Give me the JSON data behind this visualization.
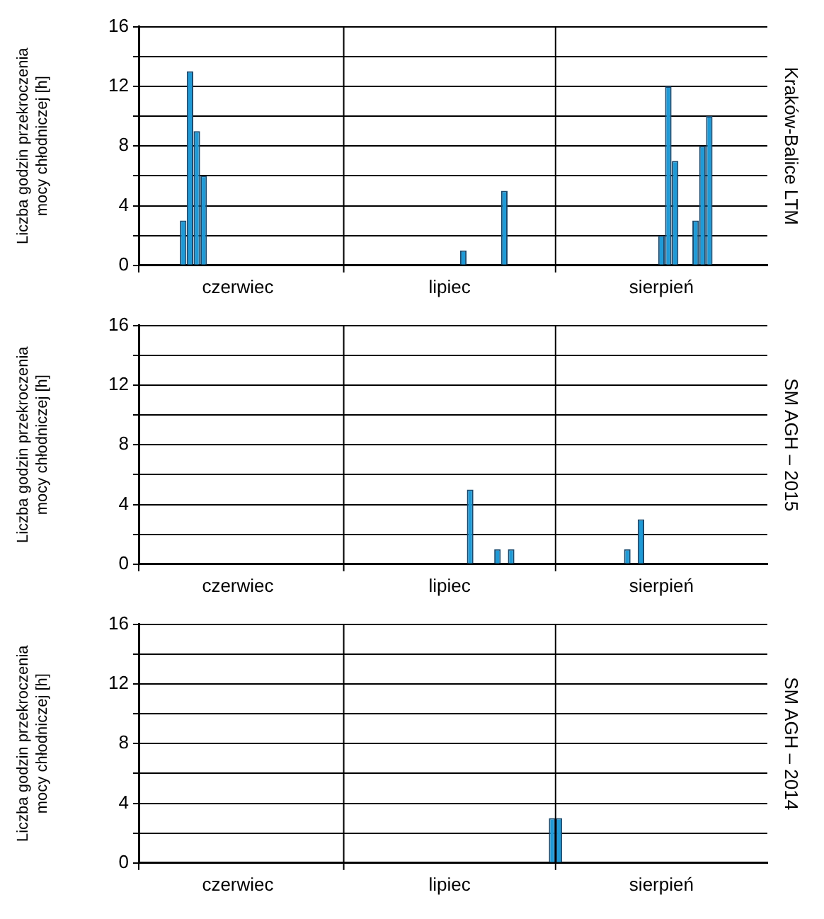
{
  "chart_data": [
    {
      "type": "bar",
      "y2label": "Kraków-Balice LTM",
      "ylabel": "Liczba godzin przekroczenia\nmocy chłodniczej [h]",
      "categories": [
        null,
        null,
        null,
        null,
        null,
        null,
        null,
        null,
        null,
        null,
        null,
        null,
        null,
        null,
        "czerwiec",
        null,
        null,
        null,
        null,
        null,
        null,
        null,
        null,
        null,
        null,
        null,
        null,
        null,
        null,
        null,
        null,
        null,
        null,
        null,
        null,
        null,
        null,
        null,
        null,
        null,
        null,
        null,
        null,
        null,
        null,
        "lipiec",
        null,
        null,
        null,
        null,
        null,
        null,
        null,
        null,
        null,
        null,
        null,
        null,
        null,
        null,
        null,
        null,
        null,
        null,
        null,
        null,
        null,
        null,
        null,
        null,
        null,
        null,
        null,
        null,
        null,
        null,
        "sierpień",
        null,
        null,
        null,
        null,
        null,
        null,
        null,
        null,
        null,
        null,
        null,
        null,
        null,
        null,
        null
      ],
      "values": [
        0,
        0,
        0,
        0,
        0,
        0,
        3,
        13,
        9,
        6,
        0,
        0,
        0,
        0,
        0,
        0,
        0,
        0,
        0,
        0,
        0,
        0,
        0,
        0,
        0,
        0,
        0,
        0,
        0,
        0,
        0,
        0,
        0,
        0,
        0,
        0,
        0,
        0,
        0,
        0,
        0,
        0,
        0,
        0,
        0,
        0,
        0,
        1,
        0,
        0,
        0,
        0,
        0,
        5,
        0,
        0,
        0,
        0,
        0,
        0,
        0,
        0,
        0,
        0,
        0,
        0,
        0,
        0,
        0,
        0,
        0,
        0,
        0,
        0,
        0,
        0,
        2,
        12,
        7,
        0,
        0,
        3,
        8,
        10,
        0,
        0,
        0,
        0,
        0,
        0,
        0,
        0
      ],
      "color": "#1f9ad6",
      "ylim": [
        0,
        16
      ],
      "yticks": [
        0,
        {
          "value": 2,
          "label": null
        },
        4,
        {
          "value": 6,
          "label": null
        },
        8,
        {
          "value": 10,
          "label": null
        },
        12,
        {
          "value": 14,
          "label": null
        },
        16
      ],
      "grid": "y",
      "legend": false
    },
    {
      "type": "bar",
      "y2label": "SM AGH – 2015",
      "ylabel": "Liczba godzin przekroczenia\nmocy chłodniczej [h]",
      "categories": [
        null,
        null,
        null,
        null,
        null,
        null,
        null,
        null,
        null,
        null,
        null,
        null,
        null,
        null,
        "czerwiec",
        null,
        null,
        null,
        null,
        null,
        null,
        null,
        null,
        null,
        null,
        null,
        null,
        null,
        null,
        null,
        null,
        null,
        null,
        null,
        null,
        null,
        null,
        null,
        null,
        null,
        null,
        null,
        null,
        null,
        null,
        "lipiec",
        null,
        null,
        null,
        null,
        null,
        null,
        null,
        null,
        null,
        null,
        null,
        null,
        null,
        null,
        null,
        null,
        null,
        null,
        null,
        null,
        null,
        null,
        null,
        null,
        null,
        null,
        null,
        null,
        null,
        null,
        "sierpień",
        null,
        null,
        null,
        null,
        null,
        null,
        null,
        null,
        null,
        null,
        null,
        null,
        null,
        null,
        null
      ],
      "values": [
        0,
        0,
        0,
        0,
        0,
        0,
        0,
        0,
        0,
        0,
        0,
        0,
        0,
        0,
        0,
        0,
        0,
        0,
        0,
        0,
        0,
        0,
        0,
        0,
        0,
        0,
        0,
        0,
        0,
        0,
        0,
        0,
        0,
        0,
        0,
        0,
        0,
        0,
        0,
        0,
        0,
        0,
        0,
        0,
        0,
        0,
        0,
        0,
        5,
        0,
        0,
        0,
        1,
        0,
        1,
        0,
        0,
        0,
        0,
        0,
        0,
        0,
        0,
        0,
        0,
        0,
        0,
        0,
        0,
        0,
        0,
        1,
        0,
        3,
        0,
        0,
        0,
        0,
        0,
        0,
        0,
        0,
        0,
        0,
        0,
        0,
        0,
        0,
        0,
        0,
        0,
        0
      ],
      "color": "#1f9ad6",
      "ylim": [
        0,
        16
      ],
      "yticks": [
        0,
        {
          "value": 2,
          "label": null
        },
        4,
        {
          "value": 6,
          "label": null
        },
        8,
        {
          "value": 10,
          "label": null
        },
        12,
        {
          "value": 14,
          "label": null
        },
        16
      ],
      "grid": "y",
      "legend": false
    },
    {
      "type": "bar",
      "y2label": "SM AGH – 2014",
      "ylabel": "Liczba godzin przekroczenia\nmocy chłodniczej [h]",
      "categories": [
        null,
        null,
        null,
        null,
        null,
        null,
        null,
        null,
        null,
        null,
        null,
        null,
        null,
        null,
        "czerwiec",
        null,
        null,
        null,
        null,
        null,
        null,
        null,
        null,
        null,
        null,
        null,
        null,
        null,
        null,
        null,
        null,
        null,
        null,
        null,
        null,
        null,
        null,
        null,
        null,
        null,
        null,
        null,
        null,
        null,
        null,
        "lipiec",
        null,
        null,
        null,
        null,
        null,
        null,
        null,
        null,
        null,
        null,
        null,
        null,
        null,
        null,
        null,
        null,
        null,
        null,
        null,
        null,
        null,
        null,
        null,
        null,
        null,
        null,
        null,
        null,
        null,
        null,
        "sierpień",
        null,
        null,
        null,
        null,
        null,
        null,
        null,
        null,
        null,
        null,
        null,
        null,
        null,
        null,
        null
      ],
      "values": [
        0,
        0,
        0,
        0,
        0,
        0,
        0,
        0,
        0,
        0,
        0,
        0,
        0,
        0,
        0,
        0,
        0,
        0,
        0,
        0,
        0,
        0,
        0,
        0,
        0,
        0,
        0,
        0,
        0,
        0,
        0,
        0,
        0,
        0,
        0,
        0,
        0,
        0,
        0,
        0,
        0,
        0,
        0,
        0,
        0,
        0,
        0,
        0,
        0,
        0,
        0,
        0,
        0,
        0,
        0,
        0,
        0,
        0,
        0,
        0,
        3,
        3,
        0,
        0,
        0,
        0,
        0,
        0,
        0,
        0,
        0,
        0,
        0,
        0,
        0,
        0,
        0,
        0,
        0,
        0,
        0,
        0,
        0,
        0,
        0,
        0,
        0,
        0,
        0,
        0,
        0,
        0
      ],
      "color": "#1f9ad6",
      "ylim": [
        0,
        16
      ],
      "yticks": [
        0,
        {
          "value": 2,
          "label": null
        },
        4,
        {
          "value": 6,
          "label": null
        },
        8,
        {
          "value": 10,
          "label": null
        },
        12,
        {
          "value": 14,
          "label": null
        },
        16
      ],
      "grid": "y",
      "legend": false
    }
  ]
}
